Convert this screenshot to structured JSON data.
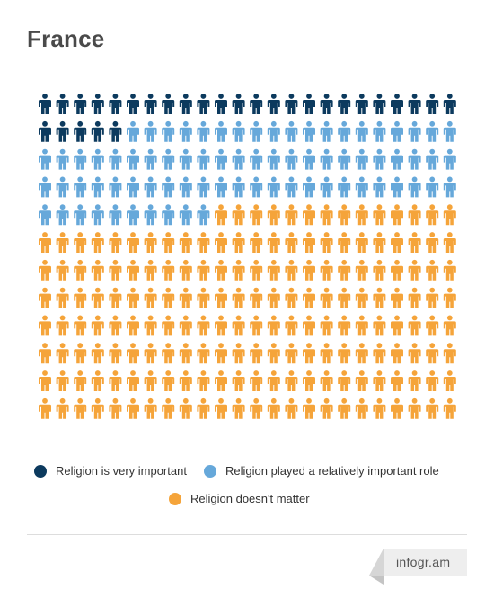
{
  "chart_data": {
    "type": "pictogram",
    "title": "France",
    "unit_icon": "person-icon",
    "columns": 24,
    "rows": 12,
    "series": [
      {
        "name": "Religion is very important",
        "count": 29,
        "color": "#0c3a5e"
      },
      {
        "name": "Religion played a relatively important role",
        "count": 77,
        "color": "#66a8da"
      },
      {
        "name": "Religion doesn't matter",
        "count": 182,
        "color": "#f5a43a"
      }
    ]
  },
  "footer": {
    "brand": "infogr.am"
  }
}
